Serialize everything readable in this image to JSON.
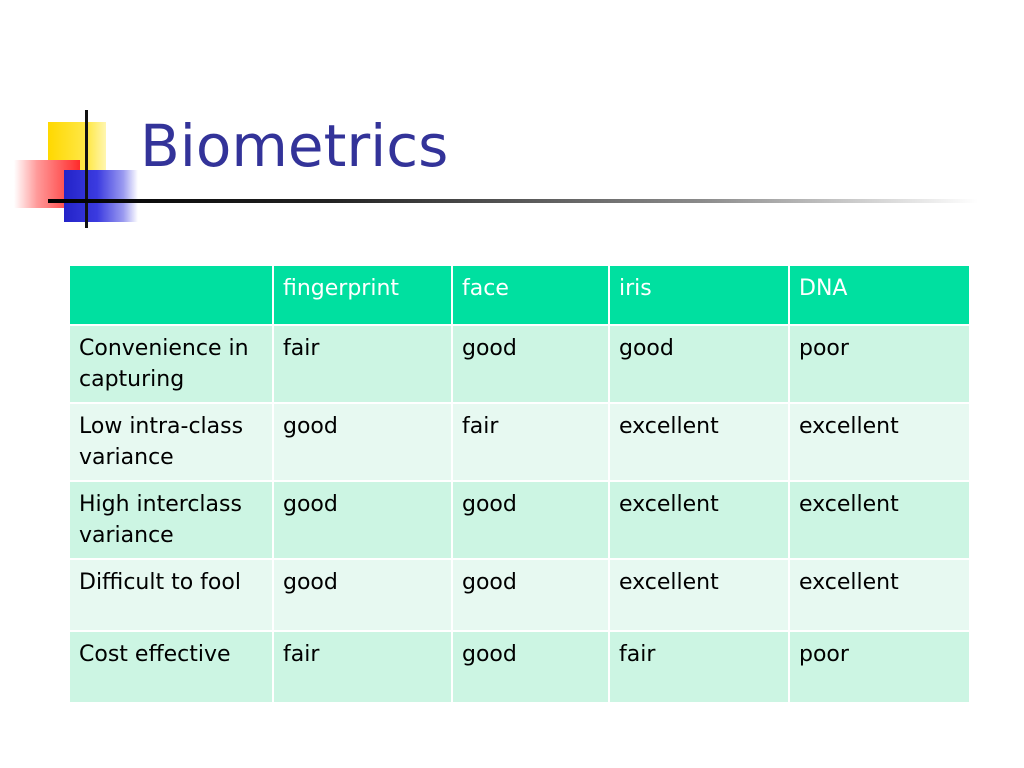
{
  "slide": {
    "title": "Biometrics"
  },
  "table": {
    "headers": [
      "",
      "fingerprint",
      "face",
      "iris",
      "DNA"
    ],
    "rows": [
      [
        "Convenience in capturing",
        "fair",
        "good",
        "good",
        "poor"
      ],
      [
        "Low intra-class variance",
        "good",
        "fair",
        "excellent",
        "excellent"
      ],
      [
        "High interclass variance",
        "good",
        "good",
        "excellent",
        "excellent"
      ],
      [
        "Difficult to fool",
        "good",
        "good",
        "excellent",
        "excellent"
      ],
      [
        "Cost effective",
        "fair",
        "good",
        "fair",
        "poor"
      ]
    ]
  },
  "colors": {
    "title": "#333399",
    "header_bg": "#00e0a0",
    "row_odd_bg": "#ccf5e3",
    "row_even_bg": "#e7f9f1"
  }
}
